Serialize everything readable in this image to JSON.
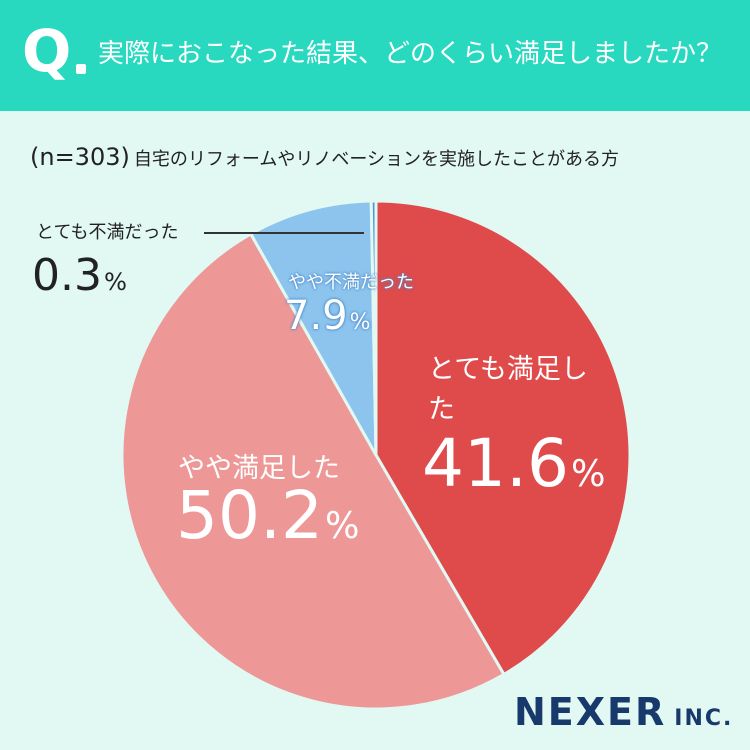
{
  "header": {
    "q_mark": "Q",
    "question": "実際におこなった結果、どのくらい満足しましたか？"
  },
  "sample": {
    "n_label": "(n=303)",
    "description": "自宅のリフォームやリノベーションを実施したことがある方"
  },
  "chart_data": {
    "type": "pie",
    "categories": [
      "とても満足した",
      "やや満足した",
      "やや不満だった",
      "とても不満だった"
    ],
    "values": [
      41.6,
      50.2,
      7.9,
      0.3
    ],
    "value_labels": [
      "41.6",
      "50.2",
      "7.9",
      "0.3"
    ],
    "unit": "%",
    "colors": [
      "#df4a4b",
      "#ed9797",
      "#8cc4ee",
      "#4a99dc"
    ],
    "start_angle_deg": 0,
    "direction": "clockwise"
  },
  "brand": {
    "name": "NEXER",
    "suffix": "INC.",
    "color": "#17396b"
  }
}
